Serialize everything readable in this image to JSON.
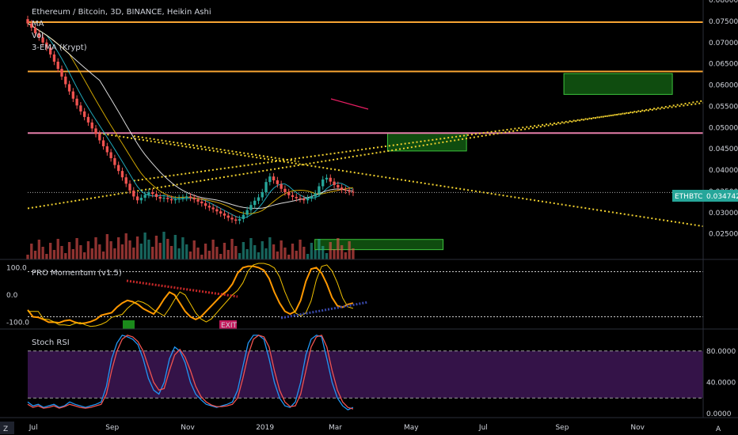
{
  "legend": {
    "title": "Ethereum / Bitcoin, 3D, BINANCE, Heikin Ashi",
    "items": [
      "MA",
      "Vol",
      "3-EMA (Krypt)"
    ]
  },
  "price_tag": {
    "symbol": "ETHBTC",
    "value": "0.034742"
  },
  "axis_buttons": {
    "left": "Z",
    "right": "A"
  },
  "colors": {
    "up": "#26a69a",
    "down": "#ef5350",
    "horizontal_orange": "#f7a433",
    "horizontal_pink": "#e57ea9",
    "zone_green": "#1b8a1b",
    "trend_yellow": "#f0d02e",
    "stoch_band": "#3a1550",
    "stoch_k": "#2196f3",
    "stoch_d": "#ef5350",
    "momentum": "#ff9800",
    "momentum_signal": "#f0c000"
  },
  "chart_data": [
    {
      "type": "candlestick",
      "title": "Ethereum / Bitcoin, 3D, BINANCE, Heikin Ashi",
      "ylim": [
        0.019,
        0.08
      ],
      "y_ticks": [
        "0.025000",
        "0.030000",
        "0.035000",
        "0.040000",
        "0.045000",
        "0.050000",
        "0.055000",
        "0.060000",
        "0.065000",
        "0.070000",
        "0.075000",
        "0.080000"
      ],
      "x_ticks": [
        "Jul",
        "Sep",
        "Nov",
        "2019",
        "Mar",
        "May",
        "Jul",
        "Sep",
        "Nov"
      ],
      "last_price": 0.034742,
      "close_series": [
        0.0745,
        0.0735,
        0.0722,
        0.0712,
        0.07,
        0.0688,
        0.0672,
        0.0655,
        0.0638,
        0.062,
        0.0602,
        0.0585,
        0.0568,
        0.0552,
        0.0538,
        0.0525,
        0.0512,
        0.0498,
        0.0485,
        0.047,
        0.0456,
        0.0442,
        0.0428,
        0.0412,
        0.0398,
        0.0383,
        0.0368,
        0.0352,
        0.0338,
        0.0329,
        0.0335,
        0.0342,
        0.0348,
        0.0344,
        0.0337,
        0.0333,
        0.0335,
        0.0332,
        0.0329,
        0.0331,
        0.0334,
        0.0335,
        0.0338,
        0.0335,
        0.0331,
        0.0326,
        0.0322,
        0.0316,
        0.0312,
        0.0308,
        0.0303,
        0.0298,
        0.0293,
        0.0288,
        0.0284,
        0.0281,
        0.0285,
        0.0295,
        0.0306,
        0.0318,
        0.0328,
        0.0336,
        0.0348,
        0.0372,
        0.0385,
        0.0376,
        0.0367,
        0.0356,
        0.0348,
        0.0341,
        0.0337,
        0.0334,
        0.0332,
        0.0329,
        0.0334,
        0.0338,
        0.0345,
        0.0362,
        0.0378,
        0.0382,
        0.0373,
        0.0365,
        0.0359,
        0.0354,
        0.0352,
        0.0349,
        0.0347
      ],
      "horizontal_levels": [
        {
          "value": 0.0748,
          "color": "#f7a433"
        },
        {
          "value": 0.0632,
          "color": "#f7a433"
        },
        {
          "value": 0.0487,
          "color": "#e57ea9"
        }
      ],
      "zones": [
        {
          "from": "2019-04-14",
          "to": "2019-06-17",
          "y_low": 0.0445,
          "y_high": 0.0487
        },
        {
          "from": "2019-09-04",
          "to": "2019-12-01",
          "y_low": 0.0578,
          "y_high": 0.0627
        },
        {
          "from": "2019-02-14",
          "to": "2019-05-29",
          "y_low": 0.0213,
          "y_high": 0.0237
        }
      ],
      "trendlines": [
        {
          "from": [
            "2018-08-20",
            0.0488
          ],
          "to": [
            "2019-12-26",
            0.0268
          ]
        },
        {
          "from": [
            "2018-09-20",
            0.0375
          ],
          "to": [
            "2019-12-26",
            0.0558
          ]
        },
        {
          "from": [
            "2018-06-26",
            0.031
          ],
          "to": [
            "2019-12-26",
            0.0563
          ]
        },
        {
          "from": [
            "2018-09-20",
            0.048
          ],
          "to": [
            "2019-02-01",
            0.042
          ]
        }
      ]
    },
    {
      "type": "line",
      "title": "PRO Momentum (v1.5)",
      "ylim": [
        -125,
        130
      ],
      "y_ticks": [
        "100.0",
        "0.0",
        "-100.0"
      ],
      "levels": [
        85,
        -80
      ],
      "series": [
        {
          "values": [
            -55,
            -80,
            -82,
            -90,
            -100,
            -100,
            -102,
            -95,
            -92,
            -100,
            -105,
            -103,
            -98,
            -90,
            -75,
            -70,
            -65,
            -45,
            -30,
            -20,
            -25,
            -35,
            -50,
            -60,
            -70,
            -45,
            -15,
            10,
            0,
            -30,
            -60,
            -80,
            -90,
            -80,
            -60,
            -40,
            -20,
            0,
            15,
            40,
            80,
            100,
            105,
            105,
            100,
            90,
            60,
            10,
            -30,
            -60,
            -70,
            -60,
            -20,
            50,
            95,
            100,
            80,
            40,
            -10,
            -40,
            -45,
            -35,
            -30
          ]
        }
      ],
      "markers": [
        {
          "label": "EXIT"
        }
      ]
    },
    {
      "type": "line",
      "title": "Stoch RSI",
      "ylim": [
        -5,
        108
      ],
      "y_ticks": [
        "80.0000",
        "40.0000",
        "0.0000"
      ],
      "band": [
        20,
        80
      ],
      "series": [
        {
          "values": [
            15,
            10,
            12,
            8,
            10,
            12,
            8,
            10,
            15,
            12,
            10,
            8,
            10,
            12,
            15,
            35,
            70,
            90,
            100,
            98,
            95,
            88,
            70,
            45,
            30,
            25,
            40,
            70,
            85,
            80,
            65,
            40,
            25,
            18,
            12,
            10,
            8,
            10,
            12,
            15,
            30,
            60,
            90,
            100,
            100,
            95,
            70,
            40,
            20,
            10,
            8,
            15,
            40,
            75,
            95,
            100,
            98,
            70,
            40,
            20,
            10,
            5,
            8
          ]
        },
        {
          "values": [
            12,
            8,
            10,
            7,
            8,
            10,
            7,
            9,
            12,
            10,
            8,
            7,
            8,
            10,
            12,
            25,
            55,
            80,
            95,
            100,
            98,
            92,
            80,
            60,
            40,
            30,
            32,
            55,
            75,
            82,
            72,
            55,
            35,
            22,
            15,
            11,
            9,
            9,
            10,
            12,
            20,
            45,
            75,
            95,
            100,
            98,
            85,
            55,
            30,
            15,
            9,
            10,
            25,
            55,
            85,
            98,
            100,
            85,
            55,
            30,
            15,
            8,
            6
          ]
        }
      ]
    }
  ]
}
